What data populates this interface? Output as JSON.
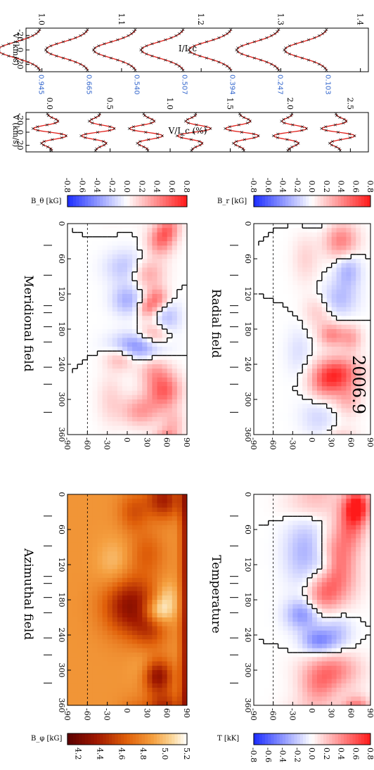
{
  "figure_title": "2006.9",
  "colors": {
    "blue": "#1a2bff",
    "white": "#ffffff",
    "red": "#ff1a1a",
    "temp_dark": "#5a0000",
    "temp_light": "#ffffff",
    "model_line": "#e0201a",
    "observed_marker": "#000000",
    "phase_label": "#3366cc"
  },
  "panels": {
    "radial": {
      "title": "Radial field",
      "colorbar_label": "B_r [kG]"
    },
    "meridional": {
      "title": "Meridional field",
      "colorbar_label": "B_θ [kG]"
    },
    "temperature": {
      "title": "Temperature",
      "colorbar_label": "T [kK]"
    },
    "azimuthal": {
      "title": "Azimuthal field",
      "colorbar_label": "B_φ [kG]"
    }
  },
  "chart_data": [
    {
      "type": "line",
      "name": "Stokes I profiles",
      "xlabel": "V (km/s)",
      "ylabel": "I/I_c",
      "xlim": [
        -30,
        30
      ],
      "x_ticks": [
        -20,
        0,
        20
      ],
      "ylim": [
        0.98,
        1.41
      ],
      "y_ticks": [
        1.0,
        1.1,
        1.2,
        1.3,
        1.4
      ],
      "y_tick_labels": [
        "1.0",
        "1.1",
        "1.2",
        "1.3",
        "1.4"
      ],
      "offset_step": 0.06,
      "profile_depth": 0.055,
      "phases": [
        "0.103",
        "0.247",
        "0.394",
        "0.507",
        "0.540",
        "0.665",
        "0.945"
      ]
    },
    {
      "type": "line",
      "name": "Stokes V profiles",
      "xlabel": "V (km/s)",
      "ylabel": "V/I_c (%)",
      "xlim": [
        -30,
        30
      ],
      "x_ticks": [
        -20,
        0,
        20
      ],
      "ylim": [
        -0.2,
        2.65
      ],
      "y_ticks": [
        0.0,
        0.5,
        1.0,
        1.5,
        2.0,
        2.5
      ],
      "y_tick_labels": [
        "0.0",
        "0.5",
        "1.0",
        "1.5",
        "2.0",
        "2.5"
      ],
      "offset_step": 0.4,
      "amplitude": 0.15
    },
    {
      "type": "heatmap",
      "name": "Radial field map",
      "xlim": [
        0,
        360
      ],
      "x_ticks": [
        0,
        60,
        120,
        180,
        240,
        300,
        360
      ],
      "ylim": [
        -90,
        90
      ],
      "y_ticks": [
        -90,
        -60,
        -30,
        0,
        30,
        60,
        90
      ],
      "zlim": [
        -0.8,
        0.8
      ],
      "colorbar_ticks": [
        "-0.8",
        "-0.6",
        "-0.4",
        "-0.2",
        "0.0",
        "0.2",
        "0.4",
        "0.6",
        "0.8"
      ],
      "observed_phase_longitudes": [
        37,
        88,
        140,
        152,
        176,
        202,
        245,
        274,
        322
      ],
      "visibility_latitude": -60,
      "blobs": [
        [
          30,
          50,
          0.45,
          18,
          14
        ],
        [
          10,
          62,
          0.35,
          14,
          12
        ],
        [
          85,
          30,
          0.35,
          18,
          18
        ],
        [
          75,
          0,
          -0.25,
          20,
          22
        ],
        [
          128,
          45,
          0.45,
          14,
          12
        ],
        [
          145,
          30,
          0.35,
          12,
          10
        ],
        [
          130,
          0,
          -0.3,
          18,
          16
        ],
        [
          160,
          60,
          -0.25,
          20,
          14
        ],
        [
          190,
          40,
          0.35,
          14,
          16
        ],
        [
          210,
          15,
          -0.45,
          16,
          26
        ],
        [
          230,
          -10,
          0.3,
          14,
          16
        ],
        [
          250,
          40,
          0.25,
          18,
          16
        ],
        [
          285,
          55,
          0.55,
          22,
          18
        ],
        [
          320,
          20,
          0.35,
          18,
          20
        ],
        [
          340,
          70,
          0.2,
          16,
          12
        ],
        [
          300,
          -25,
          0.15,
          30,
          14
        ]
      ]
    },
    {
      "type": "heatmap",
      "name": "Meridional field map",
      "xlim": [
        0,
        360
      ],
      "x_ticks": [
        0,
        60,
        120,
        180,
        240,
        300,
        360
      ],
      "ylim": [
        -90,
        90
      ],
      "y_ticks": [
        -90,
        -60,
        -30,
        0,
        30,
        60,
        90
      ],
      "zlim": [
        -0.8,
        0.8
      ],
      "colorbar_ticks": [
        "-0.8",
        "-0.6",
        "-0.4",
        "-0.2",
        "0.0",
        "0.2",
        "0.4",
        "0.6",
        "0.8"
      ],
      "observed_phase_longitudes": [
        37,
        88,
        140,
        152,
        176,
        202,
        245,
        274,
        322
      ],
      "visibility_latitude": -60,
      "blobs": [
        [
          30,
          45,
          0.45,
          22,
          18
        ],
        [
          80,
          55,
          -0.3,
          22,
          14
        ],
        [
          130,
          40,
          -0.25,
          20,
          20
        ],
        [
          150,
          10,
          0.2,
          20,
          16
        ],
        [
          190,
          30,
          0.4,
          14,
          14
        ],
        [
          195,
          60,
          0.3,
          16,
          12
        ],
        [
          255,
          40,
          0.6,
          20,
          24
        ],
        [
          275,
          20,
          0.35,
          20,
          18
        ],
        [
          300,
          55,
          0.25,
          20,
          14
        ],
        [
          330,
          10,
          -0.15,
          25,
          20
        ],
        [
          60,
          -10,
          0.15,
          30,
          14
        ],
        [
          220,
          -20,
          -0.12,
          30,
          14
        ]
      ]
    },
    {
      "type": "heatmap",
      "name": "Temperature map",
      "xlim": [
        0,
        360
      ],
      "x_ticks": [
        0,
        60,
        120,
        180,
        240,
        300,
        360
      ],
      "ylim": [
        -90,
        90
      ],
      "y_ticks": [
        -90,
        -60,
        -30,
        0,
        30,
        60,
        90
      ],
      "zlim": [
        4.1,
        5.2
      ],
      "colorbar_ticks": [
        "4.2",
        "4.4",
        "4.6",
        "4.8",
        "5.0",
        "5.2"
      ],
      "observed_phase_longitudes": [
        37,
        88,
        140,
        152,
        176,
        202,
        245,
        274,
        322
      ],
      "visibility_latitude": -60,
      "base_value": 4.85,
      "polar_cap_value": 4.35,
      "blobs": [
        [
          10,
          55,
          -0.45,
          22,
          18
        ],
        [
          190,
          5,
          -0.55,
          35,
          28
        ],
        [
          310,
          45,
          -0.55,
          20,
          16
        ],
        [
          30,
          10,
          -0.25,
          24,
          16
        ],
        [
          100,
          30,
          -0.2,
          26,
          18
        ],
        [
          230,
          35,
          -0.25,
          24,
          18
        ],
        [
          200,
          45,
          0.38,
          16,
          16
        ],
        [
          175,
          60,
          0.2,
          20,
          12
        ],
        [
          120,
          -20,
          0.15,
          30,
          18
        ],
        [
          300,
          25,
          0.12,
          22,
          14
        ]
      ]
    },
    {
      "type": "heatmap",
      "name": "Azimuthal field map",
      "xlim": [
        0,
        360
      ],
      "x_ticks": [
        0,
        60,
        120,
        180,
        240,
        300,
        360
      ],
      "ylim": [
        -90,
        90
      ],
      "y_ticks": [
        -90,
        -60,
        -30,
        0,
        30,
        60,
        90
      ],
      "zlim": [
        -0.8,
        0.8
      ],
      "colorbar_ticks": [
        "-0.8",
        "-0.6",
        "-0.4",
        "-0.2",
        "0.0",
        "0.2",
        "0.4",
        "0.6",
        "0.8"
      ],
      "observed_phase_longitudes": [
        37,
        88,
        140,
        152,
        176,
        202,
        245,
        274,
        322
      ],
      "visibility_latitude": -60,
      "blobs": [
        [
          20,
          70,
          0.7,
          20,
          14
        ],
        [
          50,
          60,
          0.45,
          30,
          16
        ],
        [
          100,
          40,
          0.35,
          30,
          20
        ],
        [
          150,
          35,
          0.4,
          30,
          24
        ],
        [
          175,
          15,
          0.3,
          20,
          18
        ],
        [
          100,
          -10,
          -0.3,
          40,
          22
        ],
        [
          120,
          20,
          -0.2,
          16,
          12
        ],
        [
          205,
          -15,
          -0.4,
          18,
          18
        ],
        [
          250,
          10,
          -0.45,
          16,
          18
        ],
        [
          235,
          40,
          -0.2,
          22,
          16
        ],
        [
          300,
          30,
          0.45,
          22,
          30
        ],
        [
          330,
          10,
          0.3,
          20,
          20
        ],
        [
          15,
          0,
          0.2,
          20,
          30
        ]
      ]
    }
  ]
}
